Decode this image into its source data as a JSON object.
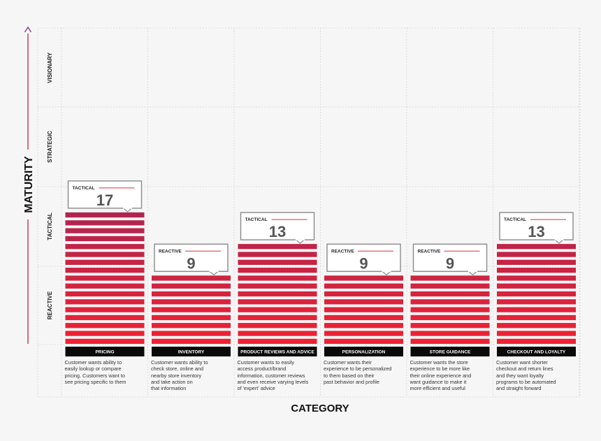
{
  "colors": {
    "bar_top": "#b0254f",
    "bar_bottom": "#ee2233",
    "label_bar": "#0a0a0a",
    "axis_arrow": "#6a2a8a",
    "axis_line": "#c4132e",
    "callout_line": "#d6323a",
    "grid": "#dcdcdc"
  },
  "chart_data": {
    "type": "bar",
    "title": "",
    "xlabel": "CATEGORY",
    "ylabel": "MATURITY",
    "y_levels": [
      "REACTIVE",
      "TACTICAL",
      "STRATEGIC",
      "VISIONARY"
    ],
    "ylim": [
      0,
      40
    ],
    "categories": [
      "PRICING",
      "INVENTORY",
      "PRODUCT REVIEWS AND ADVICE",
      "PERSONALIZATION",
      "STORE GUIDANCE",
      "CHECKOUT AND LOYALTY"
    ],
    "values": [
      17,
      9,
      13,
      9,
      9,
      13
    ],
    "callout_levels": [
      "TACTICAL",
      "REACTIVE",
      "TACTICAL",
      "REACTIVE",
      "REACTIVE",
      "TACTICAL"
    ],
    "descriptions": [
      "Customer wants ability to\neasily lookup or compare\npricing. Customers want to\nsee pricing specific to them",
      "Customer wants ability to\ncheck store, online and\nnearby store inventory\nand take action on\nthat information",
      "Customer wants to easily\naccess product/brand\ninformation, customer reviews\nand even receive varying levels\nof 'expert' advice",
      "Customer wants their\nexperience to be personalized\nto them based on their\npast behavior and profile",
      "Customer wants the store\nexperience to be more like\ntheir online experience and\nwant guidance to make it\nmore efficient and useful",
      "Customer want shorter\ncheckout and return lines\nand they want loyalty\nprograms to be automated\nand straight forward"
    ]
  }
}
